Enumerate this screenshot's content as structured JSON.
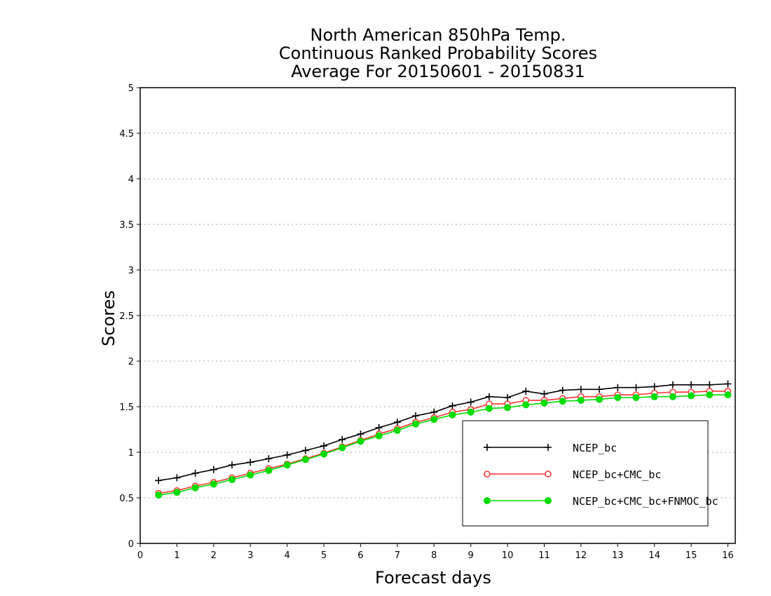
{
  "chart_data": {
    "type": "line",
    "title": [
      "North American 850hPa Temp.",
      "Continuous Ranked Probability Scores",
      "Average For 20150601 - 20150831"
    ],
    "xlabel": "Forecast days",
    "ylabel": "Scores",
    "xlim": [
      0,
      16.2
    ],
    "ylim": [
      0,
      5
    ],
    "xticks": [
      "0",
      "1",
      "2",
      "3",
      "4",
      "5",
      "6",
      "7",
      "8",
      "9",
      "10",
      "11",
      "12",
      "13",
      "14",
      "15",
      "16"
    ],
    "yticks": [
      "0",
      "0.5",
      "1",
      "1.5",
      "2",
      "2.5",
      "3",
      "3.5",
      "4",
      "4.5",
      "5"
    ],
    "grid": true,
    "legend_position": "bottom-right",
    "x": [
      0.5,
      1,
      1.5,
      2,
      2.5,
      3,
      3.5,
      4,
      4.5,
      5,
      5.5,
      6,
      6.5,
      7,
      7.5,
      8,
      8.5,
      9,
      9.5,
      10,
      10.5,
      11,
      11.5,
      12,
      12.5,
      13,
      13.5,
      14,
      14.5,
      15,
      15.5,
      16
    ],
    "series": [
      {
        "name": "NCEP_bc",
        "color": "#000000",
        "marker": "plus",
        "values": [
          0.69,
          0.72,
          0.77,
          0.81,
          0.86,
          0.89,
          0.93,
          0.97,
          1.02,
          1.07,
          1.14,
          1.2,
          1.27,
          1.33,
          1.4,
          1.44,
          1.51,
          1.55,
          1.61,
          1.6,
          1.67,
          1.64,
          1.68,
          1.69,
          1.69,
          1.71,
          1.71,
          1.72,
          1.74,
          1.74,
          1.74,
          1.75
        ]
      },
      {
        "name": "NCEP_bc+CMC_bc",
        "color": "#ff3333",
        "marker": "open-circle",
        "values": [
          0.55,
          0.58,
          0.63,
          0.67,
          0.72,
          0.77,
          0.82,
          0.87,
          0.93,
          0.99,
          1.06,
          1.13,
          1.2,
          1.26,
          1.33,
          1.38,
          1.44,
          1.47,
          1.53,
          1.53,
          1.57,
          1.57,
          1.59,
          1.61,
          1.61,
          1.63,
          1.63,
          1.65,
          1.66,
          1.66,
          1.67,
          1.67
        ]
      },
      {
        "name": "NCEP_bc+CMC_bc+FNMOC_bc",
        "color": "#00dd00",
        "marker": "filled-circle",
        "values": [
          0.53,
          0.56,
          0.61,
          0.65,
          0.7,
          0.75,
          0.8,
          0.86,
          0.92,
          0.98,
          1.05,
          1.12,
          1.18,
          1.24,
          1.31,
          1.36,
          1.41,
          1.44,
          1.48,
          1.49,
          1.52,
          1.54,
          1.56,
          1.57,
          1.58,
          1.6,
          1.6,
          1.61,
          1.61,
          1.62,
          1.63,
          1.63
        ]
      }
    ]
  }
}
